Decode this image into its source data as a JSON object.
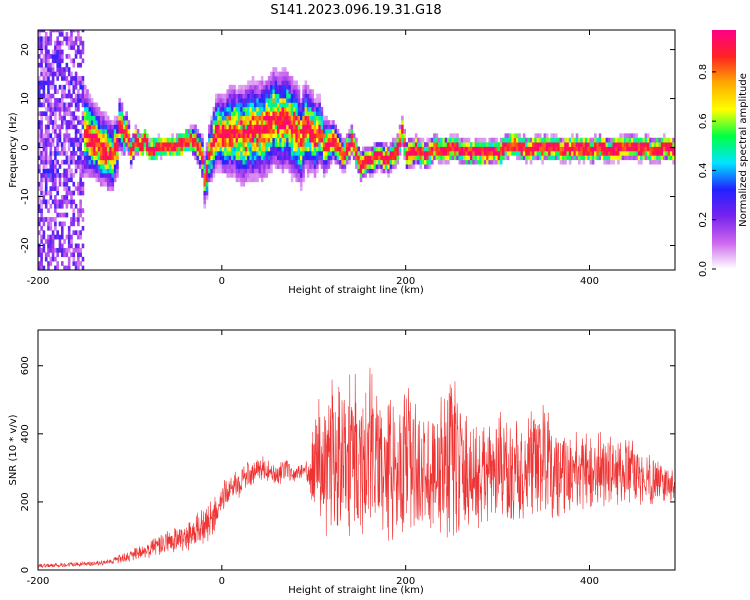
{
  "title": "S141.2023.096.19.31.G18",
  "colors": {
    "snr_line": "#ee3333",
    "axis": "#000000",
    "colormap": [
      "#ffffff",
      "#cc66ee",
      "#7722ee",
      "#2222ff",
      "#00e5ff",
      "#00ff44",
      "#ffff00",
      "#ffaa00",
      "#ff2222",
      "#ff0088"
    ]
  },
  "chart_data": [
    {
      "type": "heatmap",
      "xlabel": "Height of straight line (km)",
      "ylabel": "Frequency (Hz)",
      "xlim": [
        -200,
        493
      ],
      "ylim": [
        -25,
        24
      ],
      "xticks": [
        -200,
        0,
        200,
        400
      ],
      "xticklabels": [
        "-200",
        "0",
        "200",
        "400"
      ],
      "yticks": [
        -20,
        -10,
        0,
        10,
        20
      ],
      "yticklabels": [
        "-20",
        "-10",
        "0",
        "10",
        "20"
      ],
      "colorbar": {
        "label": "Normalized spectral amplitude",
        "range": [
          0,
          0.97
        ],
        "ticks": [
          0.0,
          0.2,
          0.4,
          0.6,
          0.8
        ],
        "ticklabels": [
          "0.0",
          "0.2",
          "0.4",
          "0.6",
          "0.8"
        ]
      },
      "ridge": {
        "x": [
          -200,
          -175,
          -160,
          -150,
          -140,
          -130,
          -120,
          -115,
          -112,
          -108,
          -104,
          -100,
          -95,
          -90,
          -85,
          -80,
          -70,
          -60,
          -50,
          -40,
          -35,
          -30,
          -25,
          -22,
          -20,
          -18,
          -15,
          -10,
          -5,
          0,
          10,
          20,
          30,
          40,
          50,
          55,
          60,
          70,
          80,
          85,
          90,
          100,
          105,
          110,
          120,
          130,
          135,
          140,
          145,
          150,
          160,
          170,
          180,
          190,
          195,
          200,
          210,
          220,
          230,
          240,
          250,
          260,
          270,
          280,
          290,
          300,
          310,
          320,
          330,
          340,
          350,
          360,
          370,
          380,
          390,
          400,
          410,
          420,
          430,
          440,
          450,
          460,
          470,
          480,
          493
        ],
        "freq": [
          5,
          4,
          4,
          3,
          1,
          -1,
          -2,
          0,
          5,
          2,
          3,
          -1,
          1,
          0,
          1,
          -1,
          -0.2,
          -0.2,
          0,
          0.8,
          1,
          0.8,
          -1,
          -3,
          -7,
          -6,
          -2,
          1,
          3,
          2,
          3,
          2,
          3,
          3,
          4,
          6,
          5,
          5,
          3,
          1,
          4,
          2,
          3,
          0,
          1,
          -2,
          -1,
          1,
          -2,
          -4,
          -3,
          -2,
          -3,
          -1,
          3,
          -2,
          -1,
          -2,
          -0.5,
          -1,
          -0.5,
          -1,
          -1.5,
          -1.5,
          -1.5,
          -1.5,
          0,
          0,
          -1,
          -0.5,
          -0.5,
          -0.5,
          -1,
          -0.5,
          -0.5,
          -1,
          -0.5,
          -1,
          -0.5,
          -0.5,
          -0.5,
          -0.5,
          -1,
          -0.5,
          -1
        ]
      },
      "spread": {
        "x": [
          -200,
          -180,
          -160,
          -140,
          -120,
          -100,
          -80,
          -60,
          -40,
          -25,
          -10,
          0,
          20,
          40,
          60,
          80,
          100,
          120,
          140,
          160,
          200,
          250,
          300,
          350,
          400,
          493
        ],
        "hz": [
          18,
          15,
          10,
          8,
          7,
          3,
          2,
          2,
          2,
          4,
          7,
          8,
          10,
          10,
          10,
          10,
          8,
          4,
          3,
          3,
          3,
          2.5,
          2.5,
          2.5,
          2.5,
          2.5
        ]
      }
    },
    {
      "type": "line",
      "xlabel": "Height of straight line (km)",
      "ylabel": "SNR (10 * v/v)",
      "xlim": [
        -200,
        493
      ],
      "ylim": [
        0,
        705
      ],
      "xticks": [
        -200,
        0,
        200,
        400
      ],
      "xticklabels": [
        "-200",
        "0",
        "200",
        "400"
      ],
      "yticks": [
        0,
        200,
        400,
        600
      ],
      "yticklabels": [
        "0",
        "200",
        "400",
        "600"
      ],
      "envelope": {
        "x": [
          -200,
          -150,
          -120,
          -100,
          -80,
          -60,
          -40,
          -20,
          -10,
          0,
          10,
          20,
          30,
          40,
          50,
          60,
          70,
          80,
          90,
          95,
          100,
          110,
          120,
          130,
          140,
          150,
          160,
          170,
          180,
          190,
          200,
          210,
          220,
          230,
          240,
          250,
          260,
          280,
          300,
          320,
          340,
          350,
          360,
          380,
          400,
          420,
          440,
          460,
          480,
          493
        ],
        "lower": [
          5,
          10,
          15,
          20,
          30,
          40,
          50,
          60,
          80,
          160,
          200,
          210,
          230,
          260,
          260,
          245,
          250,
          260,
          270,
          250,
          130,
          110,
          60,
          80,
          70,
          60,
          90,
          80,
          80,
          70,
          50,
          80,
          90,
          80,
          60,
          30,
          80,
          100,
          110,
          100,
          130,
          90,
          120,
          150,
          160,
          170,
          170,
          180,
          190,
          180
        ],
        "upper": [
          20,
          25,
          35,
          60,
          90,
          120,
          140,
          190,
          220,
          260,
          280,
          310,
          330,
          340,
          330,
          320,
          330,
          300,
          320,
          330,
          500,
          560,
          580,
          600,
          650,
          600,
          620,
          560,
          520,
          580,
          560,
          530,
          480,
          500,
          560,
          680,
          500,
          430,
          480,
          450,
          480,
          540,
          440,
          420,
          420,
          420,
          400,
          360,
          330,
          300
        ]
      }
    }
  ]
}
